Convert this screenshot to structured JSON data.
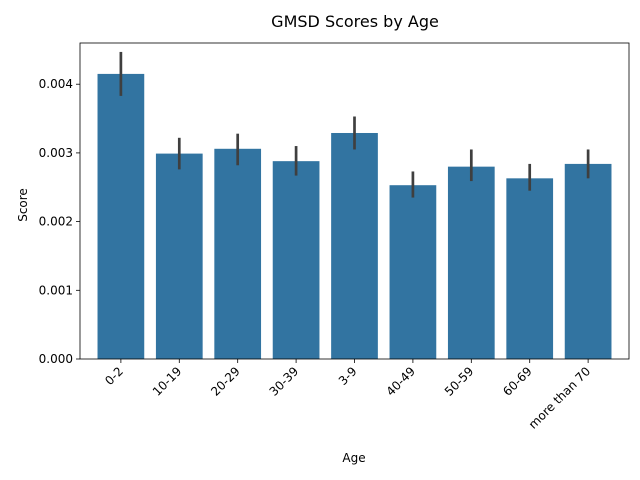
{
  "chart_data": {
    "type": "bar",
    "title": "GMSD Scores by Age",
    "xlabel": "Age",
    "ylabel": "Score",
    "categories": [
      "0-2",
      "10-19",
      "20-29",
      "30-39",
      "3-9",
      "40-49",
      "50-59",
      "60-69",
      "more than 70"
    ],
    "values": [
      0.00415,
      0.00299,
      0.00306,
      0.00288,
      0.00329,
      0.00253,
      0.0028,
      0.00263,
      0.00284
    ],
    "error_low": [
      0.00383,
      0.00276,
      0.00282,
      0.00267,
      0.00305,
      0.00235,
      0.00259,
      0.00245,
      0.00263
    ],
    "error_high": [
      0.00447,
      0.00322,
      0.00328,
      0.0031,
      0.00353,
      0.00273,
      0.00305,
      0.00284,
      0.00305
    ],
    "ylim": [
      0,
      0.0046
    ],
    "yticks": [
      0,
      0.001,
      0.002,
      0.003,
      0.004
    ],
    "ytick_labels": [
      "0.000",
      "0.001",
      "0.002",
      "0.003",
      "0.004"
    ],
    "bar_color": "#3274a1",
    "error_color": "#3f3f3f",
    "grid": false,
    "legend": "none"
  }
}
